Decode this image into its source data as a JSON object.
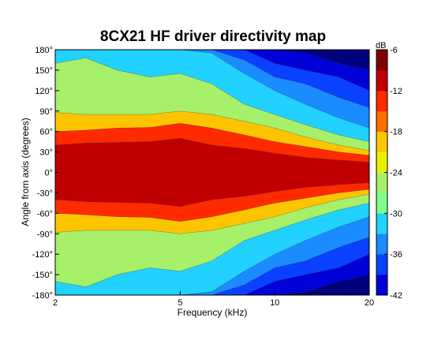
{
  "chart_data": {
    "type": "heatmap",
    "title": "8CX21 HF driver directivity map",
    "xlabel": "Frequency (kHz)",
    "ylabel": "Angle from axis (degrees)",
    "x_scale": "log",
    "xlim": [
      2,
      20
    ],
    "ylim": [
      -180,
      180
    ],
    "x_ticks": [
      2,
      5,
      10,
      20
    ],
    "x_tick_labels": [
      "2",
      "5",
      "10",
      "20"
    ],
    "y_ticks": [
      180,
      150,
      120,
      90,
      60,
      30,
      0,
      -30,
      -60,
      -90,
      -120,
      -150,
      -180
    ],
    "y_tick_labels": [
      "180°",
      "150°",
      "120°",
      "90°",
      "60°",
      "30°",
      "0°",
      "-30°",
      "-60°",
      "-90°",
      "-120°",
      "-150°",
      "-180°"
    ],
    "colorbar": {
      "label": "dB",
      "min": -42,
      "max": -6,
      "ticks": [
        -6,
        -12,
        -18,
        -24,
        -30,
        -36,
        -42
      ],
      "tick_labels": [
        "-6",
        "-12",
        "-18",
        "-24",
        "-30",
        "-36",
        "-42"
      ],
      "levels": [
        -42,
        -39,
        -36,
        -33,
        -30,
        -27,
        -24,
        -21,
        -18,
        -15,
        -12,
        -9,
        -6
      ],
      "colors": [
        "#00007f",
        "#0000d8",
        "#0a40ff",
        "#1b8cff",
        "#21d1ff",
        "#7cff8a",
        "#a6f06a",
        "#e8f000",
        "#ffc400",
        "#ff6e00",
        "#ff2a00",
        "#c00000",
        "#7f0000"
      ]
    },
    "frequencies_khz": [
      2,
      2.5,
      3.15,
      4,
      5,
      6.3,
      8,
      10,
      12.5,
      16,
      20
    ],
    "contour_boundaries_degrees": {
      "-9": [
        40,
        43,
        44,
        45,
        50,
        40,
        35,
        28,
        22,
        18,
        15
      ],
      "-12": [
        60,
        62,
        65,
        66,
        72,
        65,
        55,
        45,
        38,
        30,
        25
      ],
      "-18": [
        88,
        85,
        85,
        85,
        90,
        85,
        75,
        65,
        52,
        40,
        32
      ],
      "-21": [
        160,
        168,
        150,
        140,
        145,
        130,
        100,
        85,
        70,
        55,
        45
      ],
      "-27": [
        180,
        180,
        180,
        180,
        180,
        175,
        145,
        120,
        100,
        80,
        65
      ],
      "-30": [
        180,
        180,
        180,
        180,
        180,
        180,
        165,
        140,
        130,
        110,
        95
      ],
      "-33": [
        180,
        180,
        180,
        180,
        180,
        180,
        180,
        160,
        150,
        140,
        120
      ],
      "-36": [
        180,
        180,
        180,
        180,
        180,
        180,
        180,
        180,
        175,
        160,
        150
      ]
    }
  }
}
